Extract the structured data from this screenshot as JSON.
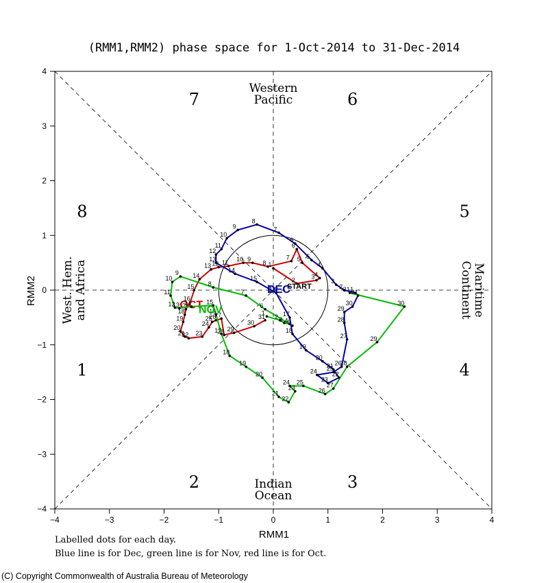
{
  "chart_data": {
    "type": "line",
    "title": "(RMM1,RMM2) phase space for  1-Oct-2014 to 31-Dec-2014",
    "xlabel": "RMM1",
    "ylabel": "RMM2",
    "xlim": [
      -4,
      4
    ],
    "ylim": [
      -4,
      4
    ],
    "xticks": [
      -4,
      -3,
      -2,
      -1,
      0,
      1,
      2,
      3,
      4
    ],
    "yticks": [
      -4,
      -3,
      -2,
      -1,
      0,
      1,
      2,
      3,
      4
    ],
    "xtick_labels": [
      "−4",
      "−3",
      "−2",
      "−1",
      "0",
      "1",
      "2",
      "3",
      "4"
    ],
    "ytick_labels": [
      "−4",
      "−3",
      "−2",
      "−1",
      "0",
      "1",
      "2",
      "3",
      "4"
    ],
    "grid": false,
    "unit_circle_radius": 1,
    "phase_labels": [
      {
        "text": "1",
        "x": -3.5,
        "y": -1.45
      },
      {
        "text": "2",
        "x": -1.45,
        "y": -3.5
      },
      {
        "text": "3",
        "x": 1.45,
        "y": -3.5
      },
      {
        "text": "4",
        "x": 3.5,
        "y": -1.45
      },
      {
        "text": "5",
        "x": 3.5,
        "y": 1.45
      },
      {
        "text": "6",
        "x": 1.45,
        "y": 3.5
      },
      {
        "text": "7",
        "x": -1.45,
        "y": 3.5
      },
      {
        "text": "8",
        "x": -3.5,
        "y": 1.45
      }
    ],
    "region_labels": {
      "top": [
        "Western",
        "Pacific"
      ],
      "bottom": [
        "Indian",
        "Ocean"
      ],
      "left": [
        "West. Hem.",
        "and Africa"
      ],
      "right": [
        "Maritime",
        "Continent"
      ]
    },
    "series": [
      {
        "name": "Oct",
        "color": "#cc0000",
        "month_label": "OCT",
        "label_x": -1.5,
        "label_y": -0.33,
        "points": [
          [
            0.0,
            0.4
          ],
          [
            0.43,
            0.12
          ],
          [
            0.79,
            0.18
          ],
          [
            0.85,
            0.22
          ],
          [
            0.53,
            0.5
          ],
          [
            0.43,
            0.75
          ],
          [
            0.33,
            0.53
          ],
          [
            -0.1,
            0.43
          ],
          [
            -0.38,
            0.5
          ],
          [
            -0.55,
            0.5
          ],
          [
            -0.82,
            0.44
          ],
          [
            -1.0,
            0.42
          ],
          [
            -1.14,
            0.38
          ],
          [
            -1.35,
            0.2
          ],
          [
            -1.45,
            0.0
          ],
          [
            -1.52,
            -0.22
          ],
          [
            -1.6,
            -0.35
          ],
          [
            -1.62,
            -0.45
          ],
          [
            -1.65,
            -0.58
          ],
          [
            -1.7,
            -0.75
          ],
          [
            -1.62,
            -0.85
          ],
          [
            -1.55,
            -0.88
          ],
          [
            -1.3,
            -0.85
          ],
          [
            -1.18,
            -0.68
          ],
          [
            -1.12,
            -0.58
          ],
          [
            -1.05,
            -0.55
          ],
          [
            -0.95,
            -0.52
          ],
          [
            -0.9,
            -0.82
          ],
          [
            -0.72,
            -0.78
          ],
          [
            -0.35,
            -0.66
          ],
          [
            -0.15,
            -0.55
          ]
        ]
      },
      {
        "name": "Nov",
        "color": "#00bb00",
        "month_label": "NOV",
        "label_x": -1.15,
        "label_y": -0.42,
        "points": [
          [
            -0.12,
            -0.48
          ],
          [
            0.12,
            -0.55
          ],
          [
            0.2,
            -0.6
          ],
          [
            0.3,
            -0.62
          ],
          [
            0.35,
            -0.65
          ],
          [
            -0.15,
            -0.35
          ],
          [
            -0.5,
            -0.1
          ],
          [
            -1.1,
            0.05
          ],
          [
            -1.7,
            0.25
          ],
          [
            -1.85,
            0.15
          ],
          [
            -1.88,
            -0.1
          ],
          [
            -1.8,
            -0.32
          ],
          [
            -1.72,
            -0.33
          ],
          [
            -1.5,
            -0.3
          ],
          [
            -1.1,
            -0.28
          ],
          [
            -1.05,
            -0.45
          ],
          [
            -0.95,
            -0.8
          ],
          [
            -0.8,
            -1.2
          ],
          [
            -0.5,
            -1.4
          ],
          [
            -0.2,
            -1.6
          ],
          [
            0.1,
            -1.95
          ],
          [
            0.28,
            -2.05
          ],
          [
            0.4,
            -1.85
          ],
          [
            0.3,
            -1.75
          ],
          [
            0.55,
            -1.75
          ],
          [
            0.95,
            -1.9
          ],
          [
            1.1,
            -1.8
          ],
          [
            1.35,
            -1.4
          ],
          [
            1.9,
            -0.95
          ],
          [
            2.4,
            -0.3
          ],
          [
            1.4,
            -0.05
          ]
        ]
      },
      {
        "name": "Dec",
        "color": "#0000aa",
        "month_label": "DEC",
        "label_x": 0.1,
        "label_y": -0.05,
        "points": [
          [
            1.5,
            -0.05
          ],
          [
            1.3,
            0.0
          ],
          [
            1.15,
            0.1
          ],
          [
            0.9,
            0.4
          ],
          [
            0.7,
            0.55
          ],
          [
            0.4,
            0.85
          ],
          [
            0.1,
            1.05
          ],
          [
            -0.3,
            1.2
          ],
          [
            -0.65,
            1.1
          ],
          [
            -0.85,
            0.95
          ],
          [
            -0.95,
            0.75
          ],
          [
            -1.05,
            0.65
          ],
          [
            -1.05,
            0.5
          ],
          [
            -0.7,
            0.3
          ],
          [
            -0.3,
            0.15
          ],
          [
            0.05,
            -0.05
          ],
          [
            0.3,
            -0.5
          ],
          [
            0.35,
            -0.8
          ],
          [
            0.6,
            -1.1
          ],
          [
            0.9,
            -1.3
          ],
          [
            1.1,
            -1.45
          ],
          [
            1.2,
            -1.6
          ],
          [
            1.0,
            -1.7
          ],
          [
            0.8,
            -1.55
          ],
          [
            1.1,
            -1.5
          ],
          [
            1.25,
            -1.4
          ],
          [
            1.35,
            -0.9
          ],
          [
            1.3,
            -0.6
          ],
          [
            1.3,
            -0.4
          ],
          [
            1.45,
            -0.3
          ],
          [
            1.55,
            -0.1
          ]
        ]
      }
    ],
    "start_label": "START",
    "start_point": [
      0.2,
      0.05
    ]
  },
  "notes": {
    "line1": "Labelled dots for each day.",
    "line2": "Blue line is for Dec, green line is for Nov, red line is for Oct."
  },
  "copyright": "(C) Copyright Commonwealth of Australia Bureau of Meteorology"
}
